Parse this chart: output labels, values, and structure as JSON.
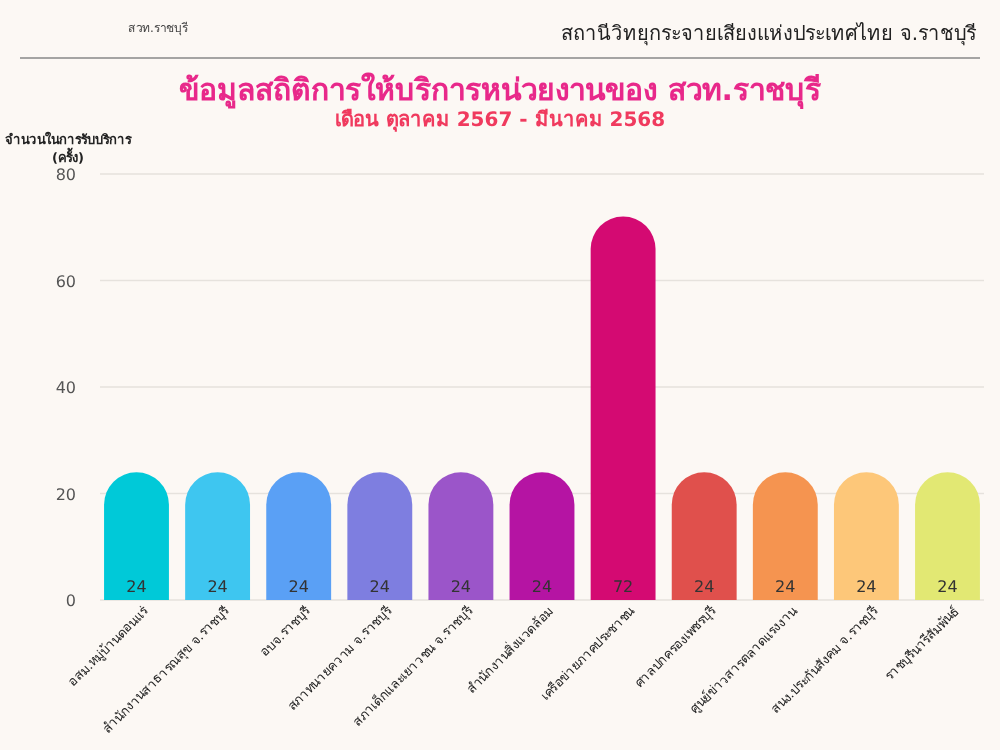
{
  "chart_data": {
    "type": "bar",
    "title": "ข้อมูลสถิติการให้บริการหน่วยงานของ สวท.ราชบุรี",
    "subtitle": "เดือน ตุลาคม 2567 - มีนาคม 2568",
    "ylabel": "จำนวนในการรับบริการ (ครั้ง)",
    "annotations": [
      "สวท.ราชบุรี",
      "สถานีวิทยุกระจายเสียงแห่งประเทศไทย จ.ราชบุรี"
    ],
    "categories": [
      "อสม.หมู่บ้านดอนแร่",
      "สำนักงานสาธารณสุข จ.ราชบุรี",
      "อบจ.ราชบุรี",
      "สภาทนายความ จ.ราชบุรี",
      "สภาเด็กและเยาวชน จ.ราชบุรี",
      "สำนักงานสิ่งแวดล้อม",
      "เครือข่ายภาคประชาชน",
      "ศาลปกครองเพชรบุรี",
      "ศูนย์ข่าวสารตลาดแรงงาน",
      "สนง.ประกันสังคม จ.ราชบุรี",
      "ราชบุรีนารีสัมพันธ์"
    ],
    "values": [
      24,
      24,
      24,
      24,
      24,
      24,
      72,
      24,
      24,
      24,
      24
    ],
    "colors": [
      "#00c9d8",
      "#3ec6f0",
      "#5aa0f5",
      "#7e7ee0",
      "#9b55c9",
      "#b514a3",
      "#d40a72",
      "#e0504c",
      "#f59450",
      "#fdc779",
      "#e2e873"
    ],
    "ylim": [
      0,
      80
    ],
    "yticks": [
      0,
      20,
      40,
      60,
      80
    ],
    "grid": "y",
    "data_labels": true
  }
}
